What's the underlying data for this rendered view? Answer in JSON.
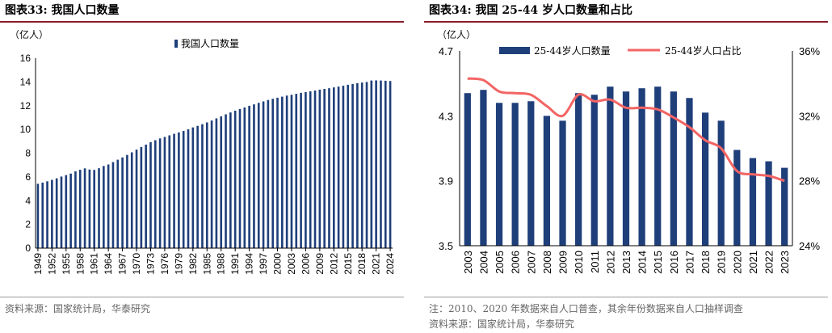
{
  "figures": [
    {
      "title": "图表33:  我国人口数量",
      "unit": "（亿人）",
      "source": "资料来源：国家统计局，华泰研究"
    },
    {
      "title": "图表34:  我国 25-44 岁人口数量和占比",
      "unit": "（亿人）",
      "note": "注：2010、2020 年数据来自人口普查，其余年份数据来自人口抽样调查",
      "source": "资料来源：国家统计局，华泰研究"
    }
  ],
  "colors": {
    "bar": "#1f3f7a",
    "line": "#f46464",
    "title_rule": "#8a1d2b"
  },
  "chart_data": [
    {
      "type": "bar",
      "title": "我国人口数量",
      "ylabel": "（亿人）",
      "ylim": [
        0,
        16
      ],
      "yticks": [
        0,
        2,
        4,
        6,
        8,
        10,
        12,
        14,
        16
      ],
      "x_start": 1949,
      "x_end": 2024,
      "x_tick_labels": [
        "1949",
        "1952",
        "1955",
        "1958",
        "1961",
        "1964",
        "1967",
        "1970",
        "1973",
        "1976",
        "1979",
        "1982",
        "1985",
        "1988",
        "1991",
        "1994",
        "1997",
        "2000",
        "2003",
        "2006",
        "2009",
        "2012",
        "2015",
        "2018",
        "2021",
        "2024"
      ],
      "legend": "top-center",
      "series": [
        {
          "name": "我国人口数量",
          "values": [
            5.42,
            5.52,
            5.63,
            5.75,
            5.88,
            6.03,
            6.15,
            6.28,
            6.47,
            6.6,
            6.72,
            6.62,
            6.59,
            6.73,
            6.92,
            7.05,
            7.25,
            7.45,
            7.64,
            7.85,
            8.07,
            8.3,
            8.52,
            8.72,
            8.92,
            9.09,
            9.24,
            9.37,
            9.5,
            9.63,
            9.75,
            9.87,
            10.01,
            10.17,
            10.3,
            10.44,
            10.59,
            10.75,
            10.93,
            11.1,
            11.27,
            11.43,
            11.58,
            11.72,
            11.85,
            11.99,
            12.11,
            12.24,
            12.36,
            12.48,
            12.58,
            12.67,
            12.76,
            12.85,
            12.92,
            13.0,
            13.08,
            13.14,
            13.21,
            13.28,
            13.35,
            13.41,
            13.47,
            13.54,
            13.61,
            13.68,
            13.76,
            13.83,
            13.9,
            13.95,
            14.0,
            14.12,
            14.13,
            14.12,
            14.1,
            14.08
          ]
        }
      ]
    },
    {
      "type": "bar+line",
      "title": "我国 25-44 岁人口数量和占比",
      "ylabel": "（亿人）",
      "ylim_left": [
        3.5,
        4.7
      ],
      "yticks_left": [
        "3.5",
        "3.9",
        "4.3",
        "4.7"
      ],
      "ylim_right": [
        24,
        36
      ],
      "yticks_right": [
        "24%",
        "28%",
        "32%",
        "36%"
      ],
      "categories": [
        "2003",
        "2004",
        "2005",
        "2006",
        "2007",
        "2008",
        "2009",
        "2010",
        "2011",
        "2012",
        "2013",
        "2014",
        "2015",
        "2016",
        "2017",
        "2018",
        "2019",
        "2020",
        "2021",
        "2022",
        "2023"
      ],
      "legend": "top",
      "series": [
        {
          "name": "25-44岁人口数量",
          "axis": "left",
          "type": "bar",
          "values": [
            4.44,
            4.46,
            4.38,
            4.38,
            4.39,
            4.3,
            4.27,
            4.44,
            4.43,
            4.48,
            4.45,
            4.47,
            4.48,
            4.45,
            4.41,
            4.32,
            4.27,
            4.09,
            4.04,
            4.02,
            3.98
          ]
        },
        {
          "name": "25-44岁人口占比",
          "axis": "right",
          "type": "line",
          "values": [
            34.3,
            34.2,
            33.5,
            33.4,
            33.3,
            32.6,
            32.0,
            33.3,
            32.9,
            33.0,
            32.5,
            32.5,
            32.4,
            31.9,
            31.3,
            30.5,
            30.0,
            28.6,
            28.4,
            28.3,
            28.0
          ]
        }
      ]
    }
  ]
}
